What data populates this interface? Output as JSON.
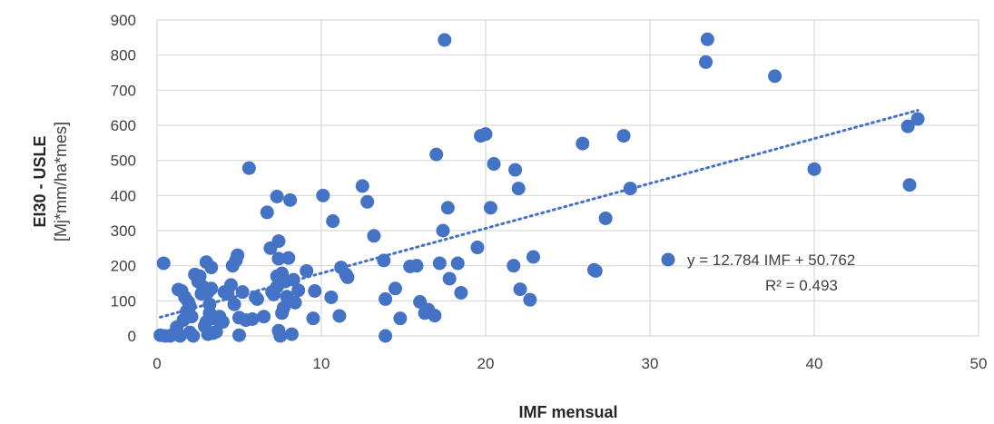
{
  "chart_data": {
    "type": "scatter",
    "title": "",
    "xlabel": "IMF mensual",
    "ylabel_main": "EI30 - USLE",
    "ylabel_unit": "[Mj*mm/ha*mes]",
    "xlim": [
      0,
      50
    ],
    "ylim": [
      0,
      900
    ],
    "x_ticks": [
      "0",
      "10",
      "20",
      "30",
      "40",
      "50"
    ],
    "y_ticks": [
      "0",
      "100",
      "200",
      "300",
      "400",
      "500",
      "600",
      "700",
      "800",
      "900"
    ],
    "grid": "vertical and horizontal major gridlines",
    "colors": {
      "points": "#4472C4",
      "trend": "#4472C4",
      "grid": "#d9d9d9"
    },
    "legend_position": "right",
    "series": [
      {
        "name": "",
        "points": [
          [
            0.2,
            2
          ],
          [
            0.4,
            207
          ],
          [
            0.5,
            0
          ],
          [
            0.8,
            0
          ],
          [
            1.0,
            5
          ],
          [
            1.2,
            25
          ],
          [
            1.2,
            5
          ],
          [
            1.3,
            132
          ],
          [
            1.4,
            0
          ],
          [
            1.5,
            128
          ],
          [
            1.6,
            45
          ],
          [
            1.7,
            110
          ],
          [
            1.8,
            70
          ],
          [
            1.9,
            97
          ],
          [
            2.0,
            10
          ],
          [
            2.0,
            85
          ],
          [
            2.1,
            55
          ],
          [
            2.2,
            0
          ],
          [
            2.3,
            175
          ],
          [
            2.5,
            155
          ],
          [
            2.6,
            170
          ],
          [
            2.7,
            120
          ],
          [
            2.8,
            140
          ],
          [
            2.9,
            28
          ],
          [
            3.0,
            210
          ],
          [
            3.0,
            40
          ],
          [
            3.1,
            125
          ],
          [
            3.1,
            5
          ],
          [
            3.2,
            90
          ],
          [
            3.2,
            65
          ],
          [
            3.3,
            135
          ],
          [
            3.3,
            195
          ],
          [
            3.4,
            8
          ],
          [
            3.5,
            50
          ],
          [
            3.6,
            12
          ],
          [
            3.8,
            55
          ],
          [
            4.0,
            40
          ],
          [
            4.1,
            125
          ],
          [
            4.3,
            120
          ],
          [
            4.5,
            145
          ],
          [
            4.6,
            200
          ],
          [
            4.7,
            90
          ],
          [
            4.8,
            215
          ],
          [
            4.9,
            230
          ],
          [
            5.0,
            52
          ],
          [
            5.0,
            2
          ],
          [
            5.2,
            125
          ],
          [
            5.4,
            45
          ],
          [
            5.6,
            478
          ],
          [
            5.8,
            48
          ],
          [
            6.0,
            110
          ],
          [
            6.1,
            105
          ],
          [
            6.5,
            55
          ],
          [
            6.7,
            352
          ],
          [
            6.9,
            250
          ],
          [
            7.0,
            125
          ],
          [
            7.1,
            118
          ],
          [
            7.3,
            397
          ],
          [
            7.3,
            170
          ],
          [
            7.3,
            140
          ],
          [
            7.4,
            270
          ],
          [
            7.4,
            220
          ],
          [
            7.4,
            15
          ],
          [
            7.5,
            0
          ],
          [
            7.6,
            178
          ],
          [
            7.6,
            65
          ],
          [
            7.7,
            80
          ],
          [
            7.8,
            155
          ],
          [
            7.9,
            112
          ],
          [
            8.0,
            222
          ],
          [
            8.1,
            387
          ],
          [
            8.2,
            5
          ],
          [
            8.3,
            160
          ],
          [
            8.4,
            95
          ],
          [
            8.6,
            130
          ],
          [
            9.1,
            185
          ],
          [
            9.5,
            50
          ],
          [
            9.6,
            128
          ],
          [
            10.1,
            400
          ],
          [
            10.6,
            110
          ],
          [
            10.7,
            327
          ],
          [
            11.1,
            57
          ],
          [
            11.2,
            195
          ],
          [
            11.5,
            175
          ],
          [
            11.6,
            167
          ],
          [
            12.5,
            427
          ],
          [
            12.8,
            382
          ],
          [
            13.2,
            285
          ],
          [
            13.8,
            215
          ],
          [
            13.9,
            105
          ],
          [
            13.9,
            0
          ],
          [
            14.5,
            135
          ],
          [
            14.8,
            50
          ],
          [
            15.4,
            198
          ],
          [
            15.8,
            200
          ],
          [
            16.0,
            97
          ],
          [
            16.3,
            65
          ],
          [
            16.5,
            75
          ],
          [
            16.9,
            58
          ],
          [
            17.0,
            517
          ],
          [
            17.2,
            207
          ],
          [
            17.4,
            300
          ],
          [
            17.5,
            843
          ],
          [
            17.7,
            365
          ],
          [
            17.8,
            163
          ],
          [
            18.3,
            207
          ],
          [
            18.5,
            123
          ],
          [
            19.5,
            252
          ],
          [
            19.7,
            570
          ],
          [
            20.0,
            575
          ],
          [
            20.3,
            365
          ],
          [
            20.5,
            490
          ],
          [
            21.7,
            200
          ],
          [
            21.8,
            473
          ],
          [
            22.0,
            420
          ],
          [
            22.1,
            133
          ],
          [
            22.7,
            103
          ],
          [
            22.9,
            225
          ],
          [
            25.9,
            548
          ],
          [
            26.6,
            188
          ],
          [
            26.7,
            185
          ],
          [
            27.3,
            335
          ],
          [
            28.4,
            570
          ],
          [
            28.8,
            420
          ],
          [
            33.4,
            780
          ],
          [
            33.5,
            845
          ],
          [
            37.6,
            740
          ],
          [
            40.0,
            475
          ],
          [
            45.7,
            597
          ],
          [
            45.8,
            430
          ],
          [
            46.3,
            618
          ]
        ]
      }
    ],
    "trendline": {
      "slope": 12.784,
      "intercept": 50.762,
      "x_range": [
        0.2,
        46.3
      ],
      "style": "dotted"
    },
    "annotation": {
      "equation": "y = 12.784 IMF + 50.762",
      "r2_label": "R² = 0.493"
    }
  }
}
